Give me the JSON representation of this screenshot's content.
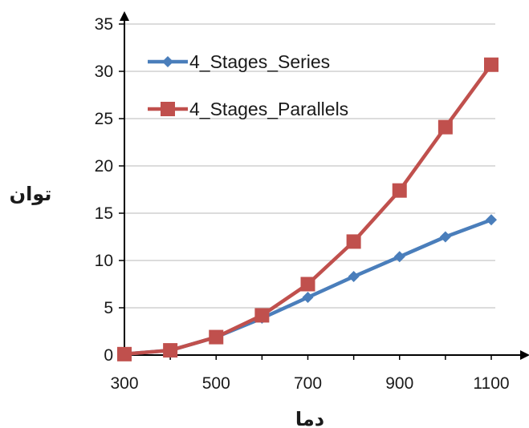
{
  "chart_data": {
    "type": "line",
    "x": [
      300,
      400,
      500,
      600,
      700,
      800,
      900,
      1000,
      1100
    ],
    "series": [
      {
        "name": "4_Stages_Series",
        "color": "#4a7ebb",
        "marker": "diamond",
        "values": [
          0.1,
          0.5,
          1.9,
          3.9,
          6.1,
          8.3,
          10.4,
          12.5,
          14.3
        ]
      },
      {
        "name": "4_Stages_Parallels",
        "color": "#c0504d",
        "marker": "square",
        "values": [
          0.1,
          0.5,
          1.9,
          4.2,
          7.5,
          12.0,
          17.4,
          24.1,
          30.7
        ]
      }
    ],
    "xlabel": "دما",
    "ylabel": "توان",
    "xlim": [
      300,
      1100
    ],
    "ylim": [
      0,
      35
    ],
    "xticks": [
      "300",
      "500",
      "700",
      "900",
      "1100"
    ],
    "yticks": [
      "0",
      "5",
      "10",
      "15",
      "20",
      "25",
      "30",
      "35"
    ],
    "grid": "horizontal",
    "legend_position": "top-left",
    "gridline_color": "#c8c8c8",
    "axis_color": "#000000"
  }
}
